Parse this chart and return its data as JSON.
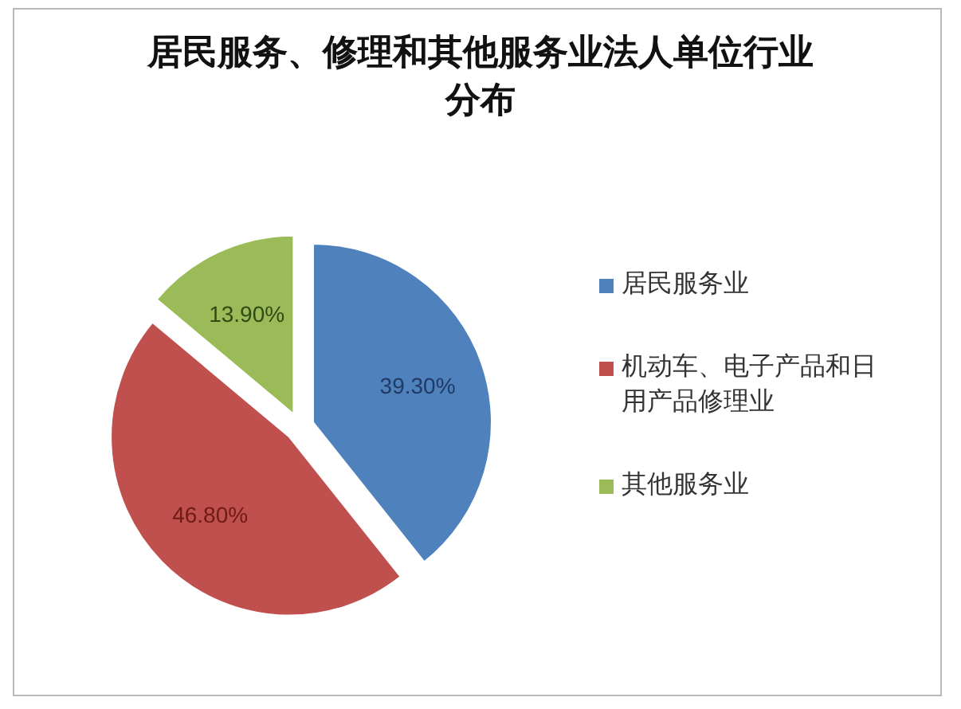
{
  "chart_data": {
    "type": "pie",
    "title": "居民服务、修理和其他服务业法人单位行业分布",
    "categories": [
      "居民服务业",
      "机动车、电子产品和日用产品修理业",
      "其他服务业"
    ],
    "values": [
      39.3,
      46.8,
      13.9
    ],
    "value_labels": [
      "39.30%",
      "46.80%",
      "13.90%"
    ],
    "colors": [
      "#4f81bd",
      "#c0504d",
      "#9bbb59"
    ],
    "legend": "right"
  }
}
